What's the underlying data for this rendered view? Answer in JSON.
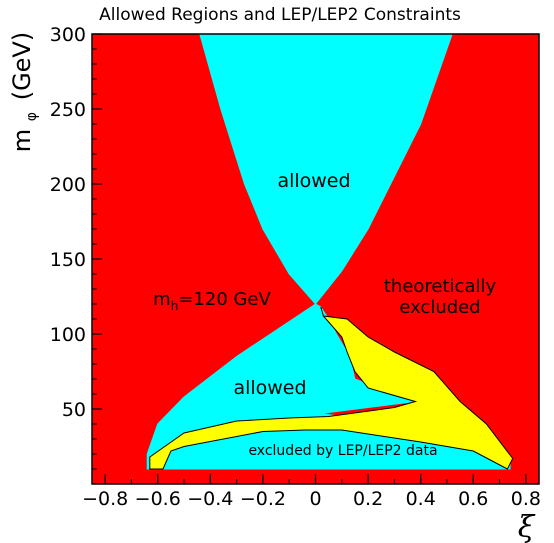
{
  "chart_data": {
    "type": "area",
    "title": "Allowed Regions and LEP/LEP2 Constraints",
    "xlabel": "ξ",
    "ylabel": "m",
    "ylabel_sub": "φ",
    "ylabel_unit": "(GeV)",
    "xlim": [
      -0.85,
      0.85
    ],
    "ylim": [
      0,
      300
    ],
    "x_ticks": [
      "−0.8",
      "−0.6",
      "−0.4",
      "−0.2",
      "0",
      "0.2",
      "0.4",
      "0.6",
      "0.8"
    ],
    "x_tick_values": [
      -0.8,
      -0.6,
      -0.4,
      -0.2,
      0,
      0.2,
      0.4,
      0.6,
      0.8
    ],
    "y_ticks": [
      "50",
      "100",
      "150",
      "200",
      "250",
      "300"
    ],
    "y_tick_values": [
      50,
      100,
      150,
      200,
      250,
      300
    ],
    "colors": {
      "theoretically_excluded": "#ff0000",
      "allowed": "#00ffff",
      "excluded_lep": "#ffff00",
      "edge": "#000000"
    },
    "regions": {
      "upper_allowed": {
        "left_boundary": [
          [
            -0.44,
            300
          ],
          [
            -0.36,
            250
          ],
          [
            -0.27,
            200
          ],
          [
            -0.2,
            170
          ],
          [
            -0.1,
            140
          ],
          [
            0,
            120
          ]
        ],
        "right_boundary": [
          [
            0,
            120
          ],
          [
            0.1,
            142
          ],
          [
            0.2,
            170
          ],
          [
            0.3,
            205
          ],
          [
            0.4,
            240
          ],
          [
            0.52,
            300
          ]
        ]
      },
      "lower_allowed": [
        [
          0,
          120
        ],
        [
          -0.3,
          85
        ],
        [
          -0.5,
          58
        ],
        [
          -0.6,
          40
        ],
        [
          -0.64,
          20
        ],
        [
          -0.64,
          10
        ],
        [
          0.74,
          10
        ],
        [
          0.74,
          18
        ],
        [
          0.5,
          35
        ],
        [
          0.3,
          42
        ],
        [
          0.1,
          45
        ],
        [
          0.02,
          47
        ],
        [
          0.38,
          55
        ],
        [
          0.15,
          70
        ],
        [
          0.13,
          85
        ],
        [
          0.08,
          100
        ],
        [
          0.05,
          110
        ],
        [
          0.02,
          118
        ]
      ],
      "lep_excluded": [
        [
          0.73,
          10
        ],
        [
          0.6,
          22
        ],
        [
          0.4,
          28
        ],
        [
          0.1,
          36
        ],
        [
          -0.04,
          36
        ],
        [
          -0.2,
          35
        ],
        [
          -0.5,
          25
        ],
        [
          -0.55,
          22
        ],
        [
          -0.58,
          10
        ],
        [
          -0.63,
          10
        ],
        [
          -0.63,
          18
        ],
        [
          -0.5,
          34
        ],
        [
          -0.3,
          42
        ],
        [
          -0.1,
          44
        ],
        [
          0.05,
          45
        ],
        [
          0.3,
          51
        ],
        [
          0.38,
          55
        ],
        [
          0.2,
          64
        ],
        [
          0.15,
          75
        ],
        [
          0.12,
          88
        ],
        [
          0.1,
          98
        ],
        [
          0.03,
          112
        ],
        [
          0.02,
          118
        ],
        [
          0.03,
          112
        ],
        [
          0.12,
          110
        ],
        [
          0.2,
          98
        ],
        [
          0.3,
          88
        ],
        [
          0.45,
          75
        ],
        [
          0.55,
          55
        ],
        [
          0.65,
          40
        ],
        [
          0.75,
          17
        ]
      ]
    },
    "annotations": {
      "upper_allowed": "allowed",
      "lower_allowed": "allowed",
      "theory_left_main": "m",
      "theory_left_sub": "h",
      "theory_left_rest": "=120 GeV",
      "theory_right_line1": "theoretically",
      "theory_right_line2": "excluded",
      "lep": "excluded by LEP/LEP2 data"
    },
    "grid": false,
    "legend": "none"
  }
}
